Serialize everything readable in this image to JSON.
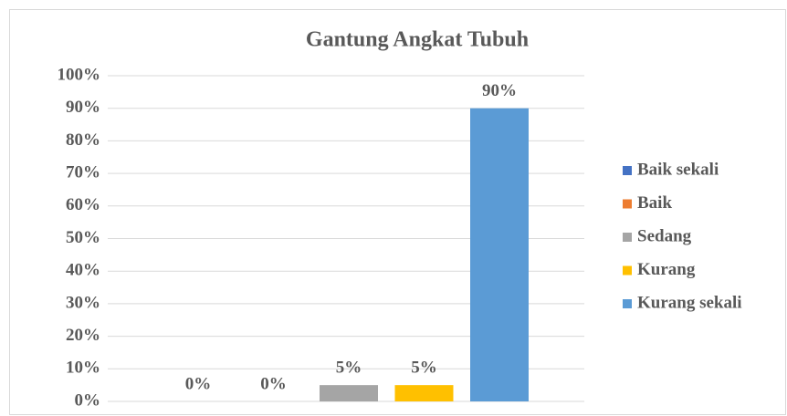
{
  "chart_data": {
    "type": "bar",
    "title": "Gantung Angkat Tubuh",
    "categories": [
      null
    ],
    "series": [
      {
        "name": "Baik sekali",
        "color": "#4472c4",
        "values": [
          0
        ],
        "value_labels": [
          "0%"
        ]
      },
      {
        "name": "Baik",
        "color": "#ed7d31",
        "values": [
          0
        ],
        "value_labels": [
          "0%"
        ]
      },
      {
        "name": "Sedang",
        "color": "#a5a5a5",
        "values": [
          5
        ],
        "value_labels": [
          "5%"
        ]
      },
      {
        "name": "Kurang",
        "color": "#ffc000",
        "values": [
          5
        ],
        "value_labels": [
          "5%"
        ]
      },
      {
        "name": "Kurang sekali",
        "color": "#5b9bd5",
        "values": [
          90
        ],
        "value_labels": [
          "90%"
        ]
      }
    ],
    "ylim": [
      0,
      100
    ],
    "yticks": [
      {
        "value": 0,
        "label": "0%"
      },
      {
        "value": 10,
        "label": "10%"
      },
      {
        "value": 20,
        "label": "20%"
      },
      {
        "value": 30,
        "label": "30%"
      },
      {
        "value": 40,
        "label": "40%"
      },
      {
        "value": 50,
        "label": "50%"
      },
      {
        "value": 60,
        "label": "60%"
      },
      {
        "value": 70,
        "label": "70%"
      },
      {
        "value": 80,
        "label": "80%"
      },
      {
        "value": 90,
        "label": "90%"
      },
      {
        "value": 100,
        "label": "100%"
      }
    ],
    "grid": true,
    "legend": "right"
  }
}
